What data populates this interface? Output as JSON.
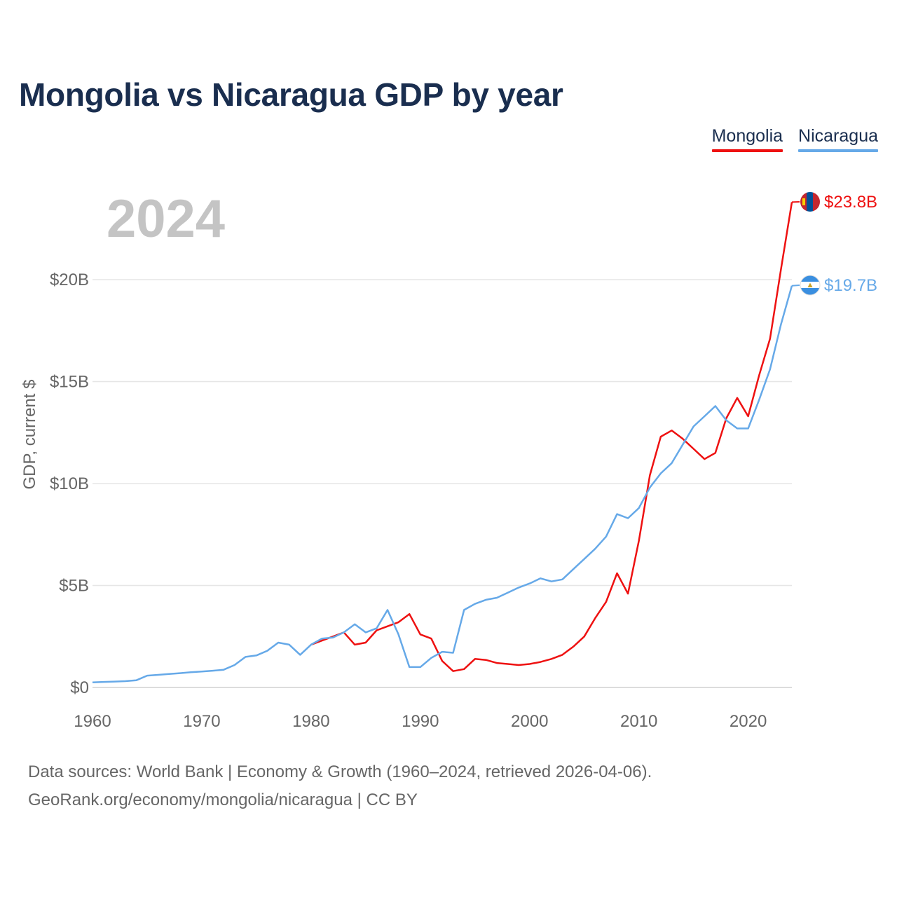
{
  "title": "Mongolia vs Nicaragua GDP by year",
  "year_watermark": "2024",
  "legend": [
    {
      "name": "Mongolia",
      "color": "#ee1111"
    },
    {
      "name": "Nicaragua",
      "color": "#66a9e8"
    }
  ],
  "footer": {
    "line1": "Data sources: World Bank | Economy & Growth (1960–2024, retrieved 2026-04-06).",
    "line2": "GeoRank.org/economy/mongolia/nicaragua | CC BY"
  },
  "chart_data": {
    "type": "line",
    "title": "Mongolia vs Nicaragua GDP by year",
    "xlabel": "",
    "ylabel": "GDP, current $",
    "xlim": [
      1960,
      2024
    ],
    "ylim": [
      0,
      23.8
    ],
    "x_ticks": [
      1960,
      1970,
      1980,
      1990,
      2000,
      2010,
      2020
    ],
    "x_tick_labels": [
      "1960",
      "1970",
      "1980",
      "1990",
      "2000",
      "2010",
      "2020"
    ],
    "y_ticks": [
      0,
      5,
      10,
      15,
      20
    ],
    "y_tick_labels": [
      "$0",
      "$5B",
      "$10B",
      "$15B",
      "$20B"
    ],
    "grid": true,
    "legend_position": "top-right",
    "series": [
      {
        "name": "Mongolia",
        "color": "#ee1111",
        "end_label": "$23.8B",
        "x": [
          1980,
          1981,
          1982,
          1983,
          1984,
          1985,
          1986,
          1987,
          1988,
          1989,
          1990,
          1991,
          1992,
          1993,
          1994,
          1995,
          1996,
          1997,
          1998,
          1999,
          2000,
          2001,
          2002,
          2003,
          2004,
          2005,
          2006,
          2007,
          2008,
          2009,
          2010,
          2011,
          2012,
          2013,
          2014,
          2015,
          2016,
          2017,
          2018,
          2019,
          2020,
          2021,
          2022,
          2023,
          2024
        ],
        "values": [
          2.1,
          2.3,
          2.5,
          2.7,
          2.1,
          2.2,
          2.8,
          3.0,
          3.2,
          3.6,
          2.6,
          2.4,
          1.3,
          0.8,
          0.9,
          1.4,
          1.35,
          1.2,
          1.15,
          1.1,
          1.15,
          1.25,
          1.4,
          1.6,
          2.0,
          2.5,
          3.4,
          4.2,
          5.6,
          4.6,
          7.2,
          10.4,
          12.3,
          12.6,
          12.2,
          11.7,
          11.2,
          11.5,
          13.2,
          14.2,
          13.3,
          15.3,
          17.1,
          20.5,
          23.8
        ]
      },
      {
        "name": "Nicaragua",
        "color": "#66a9e8",
        "end_label": "$19.7B",
        "x": [
          1960,
          1961,
          1962,
          1963,
          1964,
          1965,
          1966,
          1967,
          1968,
          1969,
          1970,
          1971,
          1972,
          1973,
          1974,
          1975,
          1976,
          1977,
          1978,
          1979,
          1980,
          1981,
          1982,
          1983,
          1984,
          1985,
          1986,
          1987,
          1988,
          1989,
          1990,
          1991,
          1992,
          1993,
          1994,
          1995,
          1996,
          1997,
          1998,
          1999,
          2000,
          2001,
          2002,
          2003,
          2004,
          2005,
          2006,
          2007,
          2008,
          2009,
          2010,
          2011,
          2012,
          2013,
          2014,
          2015,
          2016,
          2017,
          2018,
          2019,
          2020,
          2021,
          2022,
          2023,
          2024
        ],
        "values": [
          0.25,
          0.27,
          0.29,
          0.31,
          0.35,
          0.58,
          0.62,
          0.66,
          0.7,
          0.75,
          0.78,
          0.82,
          0.87,
          1.1,
          1.5,
          1.57,
          1.8,
          2.2,
          2.1,
          1.6,
          2.1,
          2.4,
          2.45,
          2.7,
          3.1,
          2.7,
          2.9,
          3.8,
          2.6,
          1.0,
          1.0,
          1.45,
          1.75,
          1.7,
          3.8,
          4.1,
          4.3,
          4.4,
          4.65,
          4.9,
          5.1,
          5.35,
          5.2,
          5.3,
          5.8,
          6.3,
          6.8,
          7.4,
          8.5,
          8.3,
          8.8,
          9.8,
          10.5,
          11.0,
          11.9,
          12.8,
          13.3,
          13.8,
          13.1,
          12.7,
          12.7,
          14.1,
          15.6,
          17.8,
          19.7
        ]
      }
    ]
  }
}
